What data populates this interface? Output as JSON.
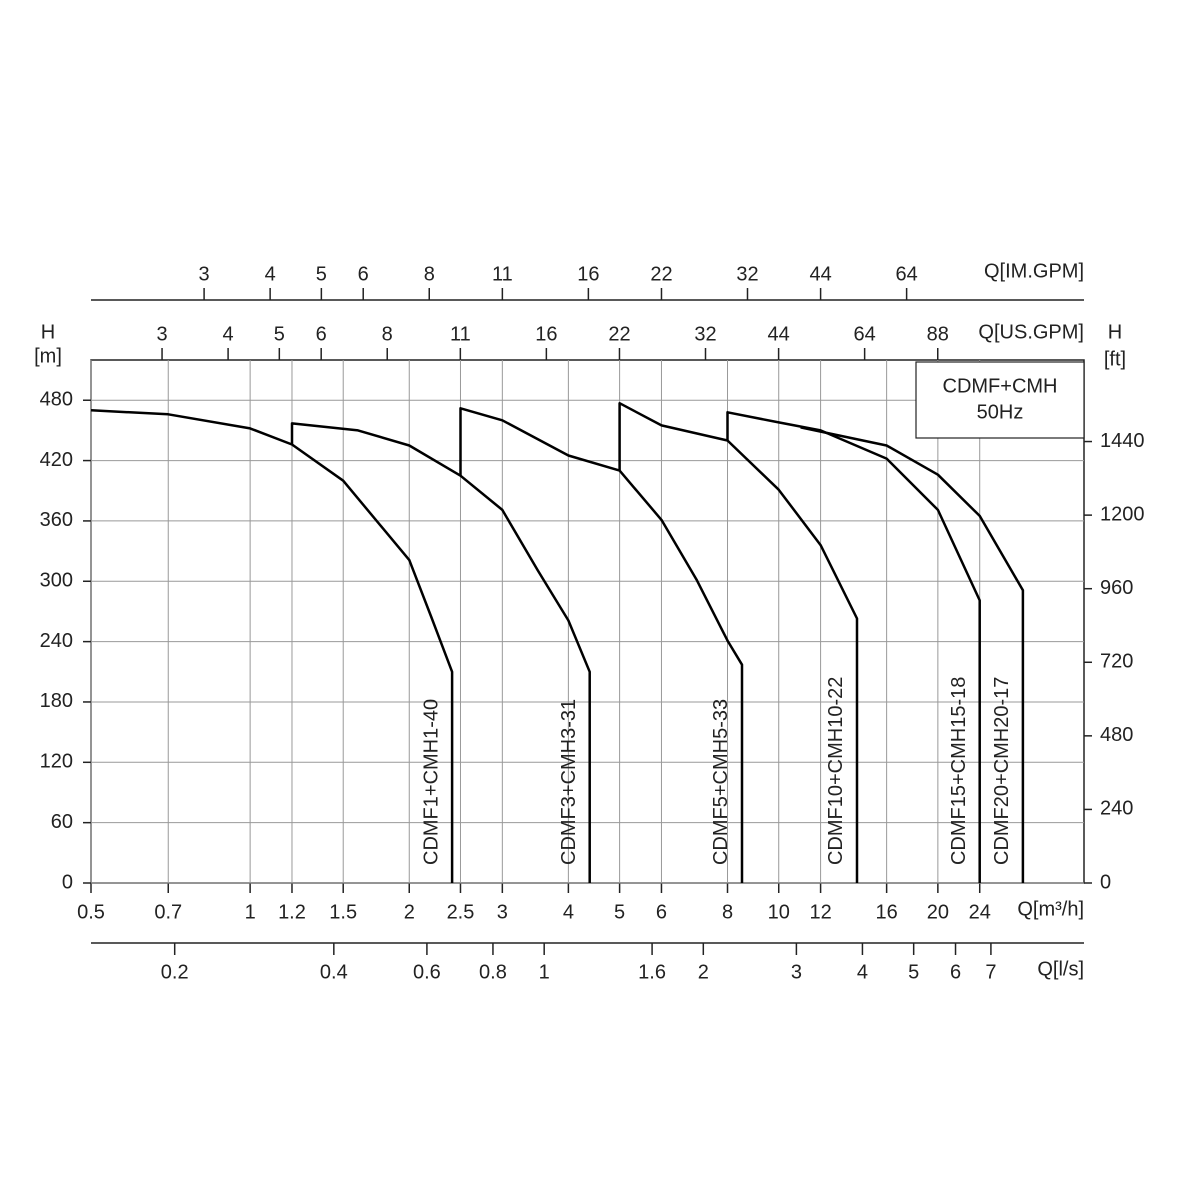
{
  "chart_data": {
    "type": "line",
    "box_text": [
      "CDMF+CMH",
      "50Hz"
    ],
    "xlabel": "Q[m³/h]",
    "ylabel": [
      "H",
      "[m]"
    ],
    "y2label": [
      "H",
      "[ft]"
    ],
    "xscale": "log",
    "grid": true,
    "xlim": [
      0.5,
      37.8
    ],
    "xticks": [
      0.5,
      0.7,
      1,
      1.2,
      1.5,
      2,
      2.5,
      3,
      4,
      5,
      6,
      8,
      10,
      12,
      16,
      20,
      24
    ],
    "ylim": [
      0,
      520
    ],
    "yticks": [
      0,
      60,
      120,
      180,
      240,
      300,
      360,
      420,
      480
    ],
    "y2lim": [
      0,
      1706
    ],
    "y2ticks": [
      0,
      240,
      480,
      720,
      960,
      1200,
      1440
    ],
    "secondary_x_axes": [
      {
        "label": "Q[IM.GPM]",
        "xlim": [
          1.833,
          138.6
        ],
        "xticks": [
          3,
          4,
          5,
          6,
          8,
          11,
          16,
          22,
          32,
          44,
          64
        ]
      },
      {
        "label": "Q[US.GPM]",
        "xlim": [
          2.2015,
          166.4
        ],
        "xticks": [
          3,
          4,
          5,
          6,
          8,
          11,
          16,
          22,
          32,
          44,
          64,
          88
        ]
      },
      {
        "label": "Q[l/s]",
        "xlim": [
          0.1389,
          10.5
        ],
        "xticks": [
          0.2,
          0.4,
          0.6,
          0.8,
          1,
          1.6,
          2,
          3,
          4,
          5,
          6,
          7
        ]
      }
    ],
    "series": [
      {
        "name": "CDMF1+CMH1-40",
        "color": "#000000",
        "x": [
          0.5,
          0.7,
          1,
          1.2,
          1.5,
          2,
          2.2,
          2.41,
          2.41
        ],
        "values": [
          470,
          466,
          452,
          436,
          400,
          321,
          265,
          210,
          0
        ]
      },
      {
        "name": "CDMF3+CMH3-31",
        "color": "#000000",
        "x": [
          1.2,
          1.2,
          1.6,
          2,
          2.5,
          3,
          3.5,
          4,
          4.39,
          4.39
        ],
        "values": [
          436,
          457,
          450,
          435,
          405,
          371,
          311,
          261,
          210,
          0
        ]
      },
      {
        "name": "CDMF5+CMH5-33",
        "color": "#000000",
        "x": [
          2.5,
          2.5,
          3,
          4,
          5,
          6,
          7,
          8,
          8.52,
          8.52
        ],
        "values": [
          405,
          472,
          460,
          425,
          410,
          361,
          301,
          241,
          217,
          0
        ]
      },
      {
        "name": "CDMF10+CMH10-22",
        "color": "#000000",
        "x": [
          5,
          5,
          6,
          8,
          10,
          12,
          14.06,
          14.06
        ],
        "values": [
          410,
          477,
          455,
          440,
          391,
          336,
          263,
          0
        ]
      },
      {
        "name": "CDMF15+CMH15-18",
        "color": "#000000",
        "x": [
          8,
          8,
          10,
          12,
          16,
          20,
          24,
          24
        ],
        "values": [
          440,
          468,
          458,
          450,
          422,
          371,
          281,
          0
        ]
      },
      {
        "name": "CDMF20+CMH20-17",
        "color": "#000000",
        "x": [
          11,
          16,
          20,
          24,
          28.97,
          28.97
        ],
        "values": [
          453,
          435,
          406,
          365,
          291,
          0
        ]
      }
    ]
  }
}
